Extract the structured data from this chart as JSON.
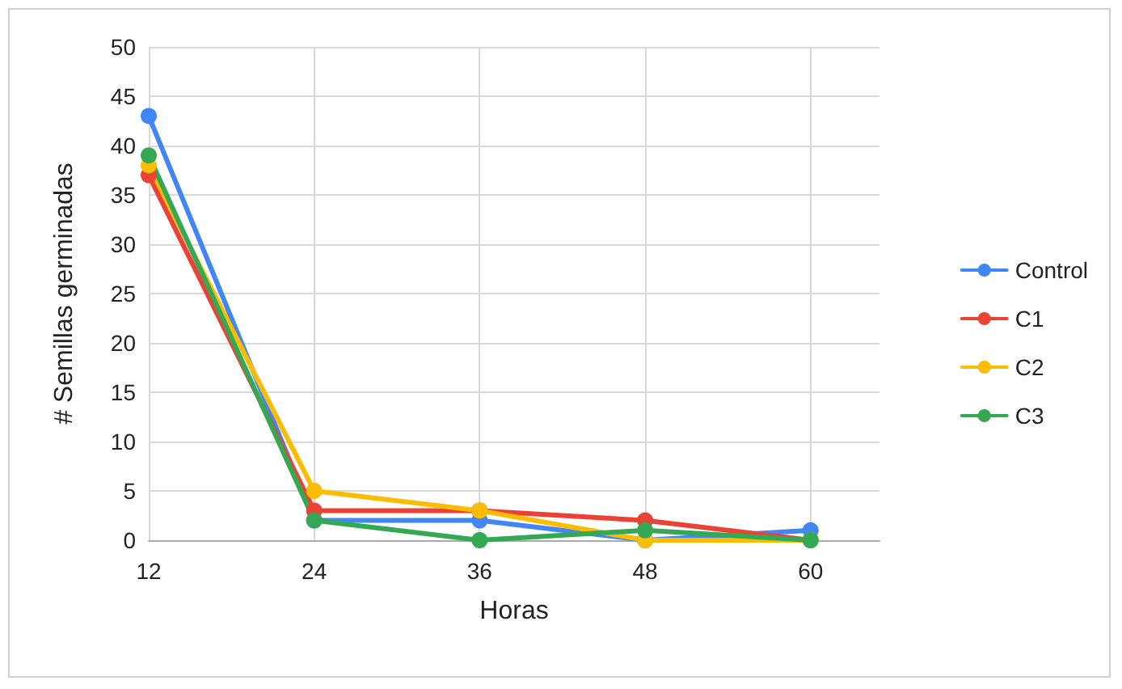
{
  "chart_data": {
    "type": "line",
    "xlabel": "Horas",
    "ylabel": "# Semillas germinadas",
    "x": [
      12,
      24,
      36,
      48,
      60
    ],
    "series": [
      {
        "name": "Control",
        "color": "#4285f4",
        "values": [
          43,
          2,
          2,
          0,
          1
        ]
      },
      {
        "name": "C1",
        "color": "#ea4335",
        "values": [
          37,
          3,
          3,
          2,
          0
        ]
      },
      {
        "name": "C2",
        "color": "#fbbc04",
        "values": [
          38,
          5,
          3,
          0,
          0
        ]
      },
      {
        "name": "C3",
        "color": "#34a853",
        "values": [
          39,
          2,
          0,
          1,
          0
        ]
      }
    ],
    "xlim": [
      12,
      65
    ],
    "xticks": [
      12,
      24,
      36,
      48,
      60
    ],
    "ylim": [
      0,
      50
    ],
    "yticks": [
      0,
      5,
      10,
      15,
      20,
      25,
      30,
      35,
      40,
      45,
      50
    ],
    "grid": true,
    "legend": "right",
    "marker": "circle",
    "line_style": "solid"
  }
}
